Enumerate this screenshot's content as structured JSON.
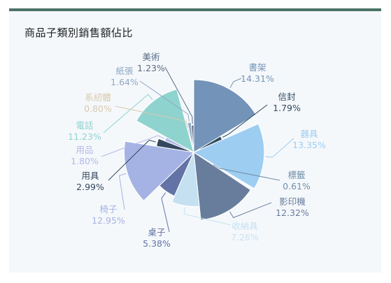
{
  "chart_data": {
    "type": "pie",
    "variant": "rose",
    "title": "商品子類別銷售額佔比",
    "series": [
      {
        "name": "書架",
        "value": 14.31,
        "label": "14.31%",
        "color": "#7393b8"
      },
      {
        "name": "信封",
        "value": 1.79,
        "label": "1.79%",
        "color": "#2f4a60"
      },
      {
        "name": "器具",
        "value": 13.35,
        "label": "13.35%",
        "color": "#9ecdf2"
      },
      {
        "name": "標籤",
        "value": 0.61,
        "label": "0.61%",
        "color": "#6e8fa8"
      },
      {
        "name": "影印機",
        "value": 12.32,
        "label": "12.32%",
        "color": "#687c9c"
      },
      {
        "name": "收納具",
        "value": 7.26,
        "label": "7.26%",
        "color": "#c5e1f1"
      },
      {
        "name": "桌子",
        "value": 5.38,
        "label": "5.38%",
        "color": "#6373a6"
      },
      {
        "name": "椅子",
        "value": 12.95,
        "label": "12.95%",
        "color": "#a4b3e4"
      },
      {
        "name": "用具",
        "value": 2.99,
        "label": "2.99%",
        "color": "#33475e"
      },
      {
        "name": "用品",
        "value": 1.8,
        "label": "1.80%",
        "color": "#b3b8e8"
      },
      {
        "name": "電話",
        "value": 11.23,
        "label": "11.23%",
        "color": "#8fd3cf"
      },
      {
        "name": "系紉體",
        "value": 0.8,
        "label": "0.80%",
        "color": "#d8c9ae"
      },
      {
        "name": "紙張",
        "value": 1.64,
        "label": "1.64%",
        "color": "#8fa8c4"
      },
      {
        "name": "美術",
        "value": 1.23,
        "label": "1.23%",
        "color": "#5a6c86"
      }
    ]
  }
}
